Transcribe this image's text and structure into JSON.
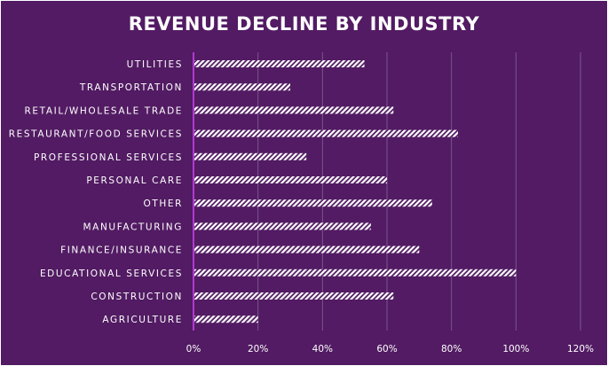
{
  "chart_data": {
    "type": "bar",
    "orientation": "horizontal",
    "title": "REVENUE DECLINE BY INDUSTRY",
    "categories": [
      "UTILITIES",
      "TRANSPORTATION",
      "RETAIL/WHOLESALE TRADE",
      "RESTAURANT/FOOD SERVICES",
      "PROFESSIONAL SERVICES",
      "PERSONAL CARE",
      "OTHER",
      "MANUFACTURING",
      "FINANCE/INSURANCE",
      "EDUCATIONAL SERVICES",
      "CONSTRUCTION",
      "AGRICULTURE"
    ],
    "values": [
      53,
      30,
      62,
      82,
      35,
      60,
      74,
      55,
      70,
      100,
      62,
      20
    ],
    "xlim": [
      0,
      120
    ],
    "xticks": [
      "0%",
      "20%",
      "40%",
      "60%",
      "80%",
      "100%",
      "120%"
    ],
    "xtick_values": [
      0,
      20,
      40,
      60,
      80,
      100,
      120
    ],
    "grid": true,
    "bar_fill": "hatched",
    "colors": {
      "background": "#521b63",
      "bar": "#ffffff",
      "axis": "#b03ad0",
      "grid": "#7d5590"
    }
  }
}
